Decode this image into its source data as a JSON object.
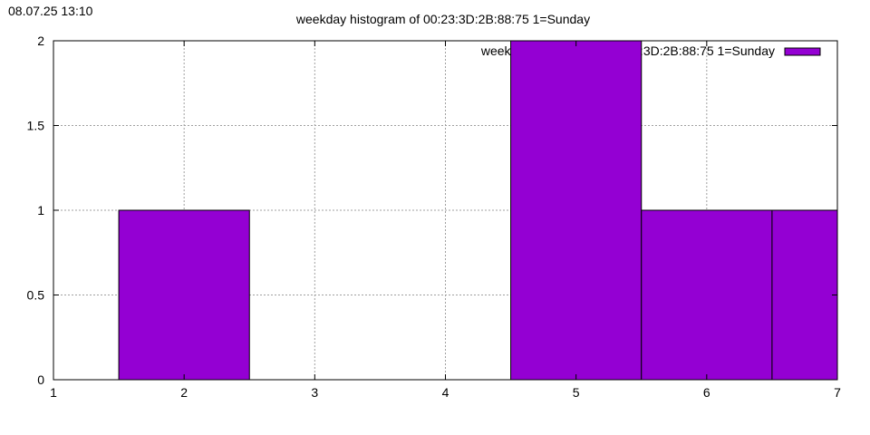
{
  "timestamp": "08.07.25 13:10",
  "chart_data": {
    "type": "bar",
    "title": "weekday histogram of 00:23:3D:2B:88:75 1=Sunday",
    "xlabel": "",
    "ylabel": "",
    "xlim": [
      1,
      7
    ],
    "ylim": [
      0,
      2
    ],
    "x_ticks": [
      "1",
      "2",
      "3",
      "4",
      "5",
      "6",
      "7"
    ],
    "y_ticks": [
      "0",
      "0.5",
      "1",
      "1.5",
      "2"
    ],
    "grid": true,
    "legend_position": "top-right",
    "series": [
      {
        "name": "weekday histogram of 00:23:3D:2B:88:75 1=Sunday",
        "color": "#9400d3",
        "x": [
          2,
          5,
          6,
          7
        ],
        "values": [
          1,
          2,
          1,
          1
        ]
      }
    ]
  }
}
